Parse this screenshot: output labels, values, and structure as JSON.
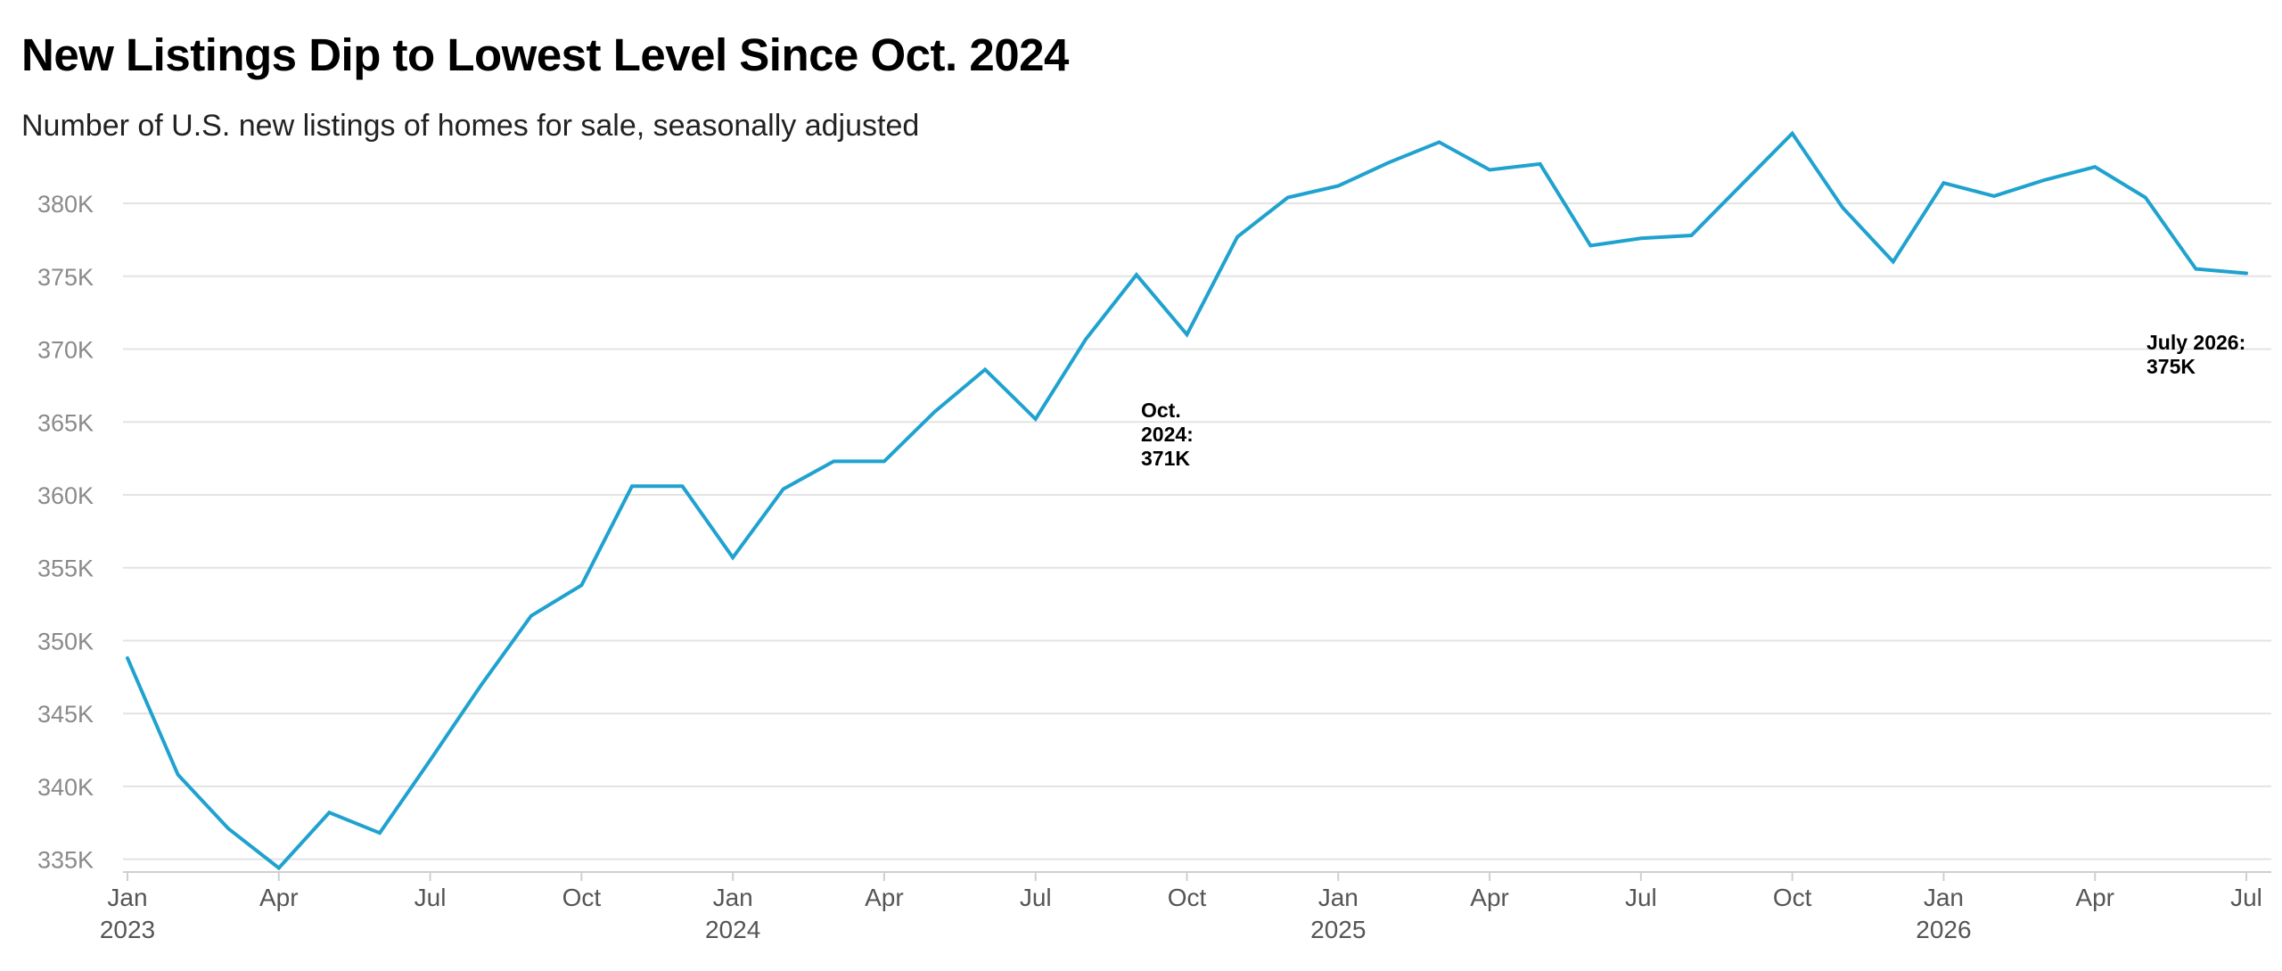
{
  "title": "New Listings Dip to Lowest Level Since Oct. 2024",
  "subtitle": "Number of U.S. new listings of homes for sale, seasonally adjusted",
  "colors": {
    "line": "#1fa2cf",
    "grid": "#e3e3e3",
    "tick": "#8a8a8a"
  },
  "chart_data": {
    "type": "line",
    "title": "New Listings Dip to Lowest Level Since Oct. 2024",
    "subtitle": "Number of U.S. new listings of homes for sale, seasonally adjusted",
    "xlabel": "",
    "ylabel": "",
    "ylim": [
      334000,
      386000
    ],
    "grid": true,
    "y_ticks": [
      335000,
      340000,
      345000,
      350000,
      355000,
      360000,
      365000,
      370000,
      375000,
      380000
    ],
    "y_tick_labels": [
      "335K",
      "340K",
      "345K",
      "350K",
      "355K",
      "360K",
      "365K",
      "370K",
      "375K",
      "380K"
    ],
    "x_ticks": [
      {
        "date": "2023-01",
        "label": "Jan",
        "year": "2023"
      },
      {
        "date": "2023-04",
        "label": "Apr",
        "year": ""
      },
      {
        "date": "2023-07",
        "label": "Jul",
        "year": ""
      },
      {
        "date": "2023-10",
        "label": "Oct",
        "year": ""
      },
      {
        "date": "2024-01",
        "label": "Jan",
        "year": "2024"
      },
      {
        "date": "2024-04",
        "label": "Apr",
        "year": ""
      },
      {
        "date": "2024-07",
        "label": "Jul",
        "year": ""
      },
      {
        "date": "2024-10",
        "label": "Oct",
        "year": ""
      },
      {
        "date": "2025-01",
        "label": "Jan",
        "year": "2025"
      },
      {
        "date": "2025-04",
        "label": "Apr",
        "year": ""
      },
      {
        "date": "2025-07",
        "label": "Jul",
        "year": ""
      },
      {
        "date": "2025-10",
        "label": "Oct",
        "year": ""
      },
      {
        "date": "2026-01",
        "label": "Jan",
        "year": "2026"
      },
      {
        "date": "2026-04",
        "label": "Apr",
        "year": ""
      },
      {
        "date": "2026-07",
        "label": "Jul",
        "year": ""
      }
    ],
    "series": [
      {
        "x": [
          "2023-01",
          "2023-02",
          "2023-03",
          "2023-04",
          "2023-05",
          "2023-06",
          "2023-07",
          "2023-08",
          "2023-09",
          "2023-10",
          "2023-11",
          "2023-12",
          "2024-01",
          "2024-02",
          "2024-03",
          "2024-04",
          "2024-05",
          "2024-06",
          "2024-07",
          "2024-08",
          "2024-09",
          "2024-10",
          "2024-11",
          "2024-12",
          "2025-01",
          "2025-02",
          "2025-03",
          "2025-04",
          "2025-05",
          "2025-06",
          "2025-07",
          "2025-08",
          "2025-09",
          "2025-10",
          "2025-11",
          "2025-12",
          "2026-01",
          "2026-02",
          "2026-03",
          "2026-04",
          "2026-05",
          "2026-06",
          "2026-07"
        ],
        "values": [
          348800,
          340800,
          337100,
          334400,
          338200,
          336800,
          341800,
          346900,
          351700,
          353800,
          360600,
          360600,
          355700,
          360400,
          362300,
          362300,
          365700,
          368600,
          365200,
          370700,
          375100,
          371000,
          377700,
          380400,
          381200,
          382800,
          384200,
          382300,
          382700,
          377100,
          377600,
          377800,
          381300,
          384800,
          379700,
          376000,
          381400,
          380500,
          381600,
          382500,
          380400,
          375500,
          375200
        ]
      }
    ],
    "annotations": [
      {
        "date": "2024-10",
        "lines": [
          "Oct.",
          "2024:",
          "371K"
        ]
      },
      {
        "date": "2026-07",
        "lines": [
          "July 2026:",
          "375K"
        ]
      }
    ]
  }
}
